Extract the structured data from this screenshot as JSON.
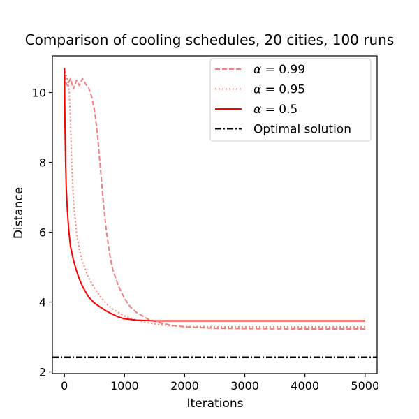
{
  "chart_data": {
    "type": "line",
    "title": "Comparison of cooling schedules, 20 cities, 100 runs",
    "xlabel": "Iterations",
    "ylabel": "Distance",
    "xlim": [
      -200,
      5200
    ],
    "ylim": [
      1.95,
      11.05
    ],
    "xticks": [
      0,
      1000,
      2000,
      3000,
      4000,
      5000
    ],
    "yticks": [
      2,
      4,
      6,
      8,
      10
    ],
    "xtick_labels": [
      "0",
      "1000",
      "2000",
      "3000",
      "4000",
      "5000"
    ],
    "ytick_labels": [
      "2",
      "4",
      "6",
      "8",
      "10"
    ],
    "grid": false,
    "legend_position": "top-right",
    "series": [
      {
        "name": "α = 0.99",
        "legend_var": "α",
        "legend_value": "0.99",
        "color": "#f08080",
        "linestyle": "dashed",
        "x": [
          0,
          20,
          50,
          100,
          150,
          200,
          250,
          300,
          350,
          400,
          450,
          500,
          550,
          600,
          650,
          700,
          750,
          800,
          900,
          1000,
          1100,
          1200,
          1400,
          1600,
          1800,
          2000,
          2500,
          3000,
          4000,
          5000
        ],
        "y": [
          10.7,
          10.3,
          10.2,
          10.4,
          10.1,
          10.35,
          10.2,
          10.4,
          10.25,
          10.15,
          9.9,
          9.5,
          8.8,
          7.8,
          6.8,
          6.0,
          5.4,
          4.95,
          4.45,
          4.1,
          3.85,
          3.7,
          3.5,
          3.4,
          3.33,
          3.29,
          3.25,
          3.24,
          3.23,
          3.23
        ]
      },
      {
        "name": "α = 0.95",
        "legend_var": "α",
        "legend_value": "0.95",
        "color": "#fa8072",
        "linestyle": "dotted",
        "x": [
          0,
          30,
          60,
          80,
          100,
          120,
          150,
          200,
          250,
          300,
          400,
          500,
          600,
          700,
          800,
          900,
          1000,
          1200,
          1400,
          1600,
          1800,
          2000,
          2500,
          3000,
          4000,
          5000
        ],
        "y": [
          10.7,
          10.5,
          10.3,
          10.0,
          9.2,
          8.0,
          6.9,
          6.0,
          5.5,
          5.15,
          4.7,
          4.4,
          4.15,
          3.95,
          3.8,
          3.7,
          3.6,
          3.48,
          3.4,
          3.35,
          3.32,
          3.3,
          3.29,
          3.29,
          3.29,
          3.29
        ]
      },
      {
        "name": "α = 0.5",
        "legend_var": "α",
        "legend_value": "0.5",
        "color": "#ff0000",
        "linestyle": "solid",
        "x": [
          0,
          10,
          20,
          30,
          50,
          70,
          100,
          150,
          200,
          250,
          300,
          400,
          500,
          600,
          700,
          800,
          900,
          1000,
          1200,
          1500,
          2000,
          3000,
          4000,
          5000
        ],
        "y": [
          10.7,
          9.0,
          8.0,
          7.3,
          6.6,
          6.1,
          5.6,
          5.2,
          4.9,
          4.65,
          4.45,
          4.15,
          3.97,
          3.85,
          3.74,
          3.65,
          3.57,
          3.52,
          3.48,
          3.46,
          3.46,
          3.46,
          3.46,
          3.46
        ]
      },
      {
        "name": "Optimal solution",
        "color": "#000000",
        "linestyle": "dashdot",
        "x": [
          -200,
          5200
        ],
        "y": [
          2.42,
          2.42
        ]
      }
    ]
  }
}
